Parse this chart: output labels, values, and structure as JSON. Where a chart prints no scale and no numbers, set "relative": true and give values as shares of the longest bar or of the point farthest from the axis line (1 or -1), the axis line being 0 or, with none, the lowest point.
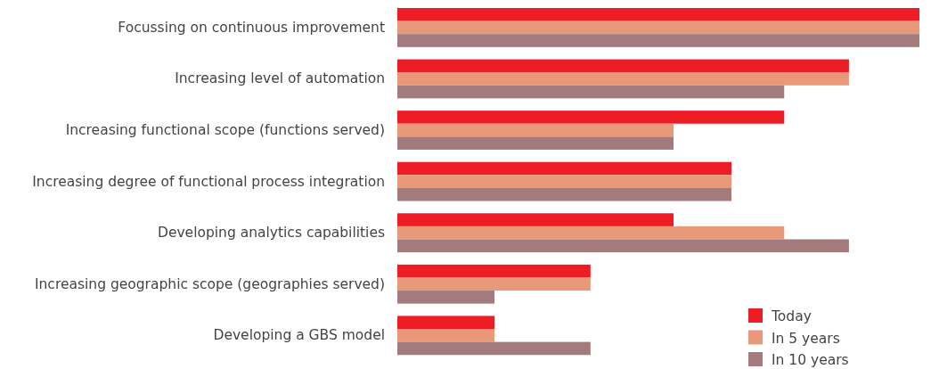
{
  "chart_data": {
    "type": "bar",
    "orientation": "horizontal",
    "relative": true,
    "legend": "bottom right",
    "categories": [
      "Focussing on continuous improvement",
      "Increasing level of automation",
      "Increasing functional scope (functions served)",
      "Increasing degree of functional process integration",
      "Developing analytics capabilities",
      "Increasing geographic scope (geographies served)",
      "Developing a GBS model"
    ],
    "series": [
      {
        "name": "Today",
        "color": "#ee1c25",
        "values": [
          1,
          0.865,
          0.741,
          0.64,
          0.529,
          0.37,
          0.186
        ]
      },
      {
        "name": "In 5 years",
        "color": "#e8997a",
        "values": [
          1,
          0.865,
          0.529,
          0.64,
          0.741,
          0.37,
          0.186
        ]
      },
      {
        "name": "In 10 years",
        "color": "#a47b7d",
        "values": [
          1,
          0.741,
          0.529,
          0.64,
          0.865,
          0.186,
          0.37
        ]
      }
    ]
  }
}
